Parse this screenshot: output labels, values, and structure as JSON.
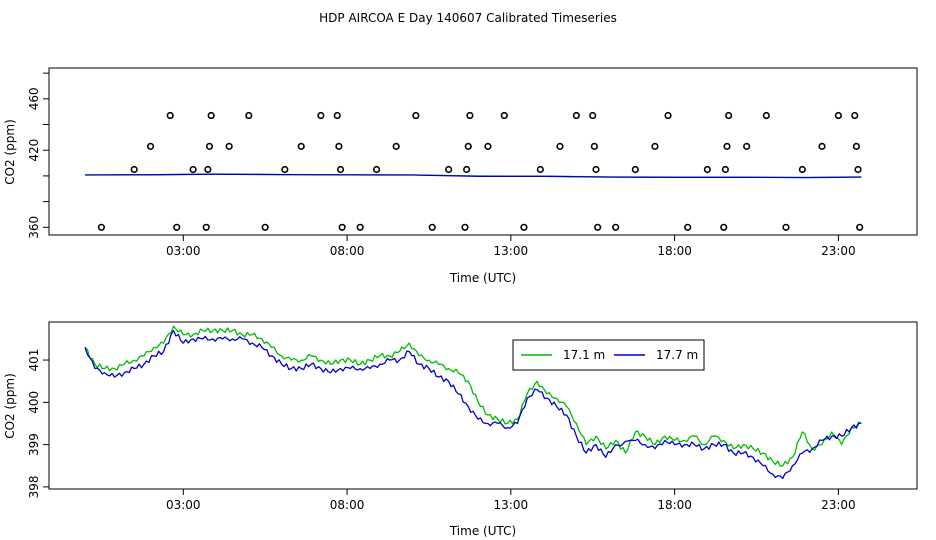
{
  "figure_title": "HDP AIRCOA E  Day 140607  Calibrated Timeseries",
  "chart_data": [
    {
      "type": "scatter",
      "title": "",
      "xlabel": "Time (UTC)",
      "ylabel": "CO2 (ppm)",
      "xlim": [
        -1.1,
        25.4
      ],
      "ylim": [
        354,
        484
      ],
      "xticks": [
        3,
        8,
        13,
        18,
        23
      ],
      "xtick_labels": [
        "03:00",
        "08:00",
        "13:00",
        "18:00",
        "23:00"
      ],
      "yticks": [
        360,
        380,
        400,
        420,
        440,
        460,
        480
      ],
      "ytick_labels": [
        "360",
        "",
        "",
        "420",
        "",
        "460",
        ""
      ],
      "grid": false,
      "series": [
        {
          "kind": "points",
          "color": "#000000",
          "x": [
            0.5,
            1.5,
            2.0,
            2.6,
            2.8,
            3.3,
            3.7,
            3.75,
            3.8,
            3.85,
            4.4,
            5.0,
            5.5,
            6.1,
            6.6,
            7.2,
            7.7,
            7.75,
            7.8,
            7.85,
            8.4,
            8.9,
            9.5,
            10.1,
            10.6,
            11.1,
            11.6,
            11.65,
            11.7,
            11.75,
            12.3,
            12.8,
            13.4,
            13.9,
            14.5,
            15.0,
            15.5,
            15.55,
            15.6,
            15.65,
            16.2,
            16.8,
            17.4,
            17.8,
            18.4,
            19.0,
            19.5,
            19.55,
            19.6,
            19.65,
            20.2,
            20.8,
            21.4,
            21.9,
            22.5,
            23.0,
            23.5,
            23.55,
            23.6,
            23.65
          ],
          "y": [
            360,
            405,
            423,
            447,
            360,
            405,
            360,
            405,
            423,
            447,
            423,
            447,
            360,
            405,
            423,
            447,
            447,
            423,
            405,
            360,
            360,
            405,
            423,
            447,
            360,
            405,
            360,
            405,
            423,
            447,
            423,
            447,
            360,
            405,
            423,
            447,
            447,
            423,
            405,
            360,
            360,
            405,
            423,
            447,
            360,
            405,
            360,
            405,
            423,
            447,
            423,
            447,
            360,
            405,
            423,
            447,
            447,
            423,
            405,
            360
          ]
        },
        {
          "kind": "line",
          "name": "17.1 m",
          "color": "#00bb00",
          "x": [
            0,
            2,
            4,
            6,
            8,
            10,
            12,
            14,
            16,
            18,
            20,
            22,
            23.7
          ],
          "y": [
            400.8,
            401.0,
            401.4,
            401.1,
            400.9,
            400.8,
            399.9,
            399.8,
            399.2,
            399.0,
            399.0,
            398.8,
            399.2
          ]
        },
        {
          "kind": "line",
          "name": "17.7 m",
          "color": "#0000cc",
          "x": [
            0,
            2,
            4,
            6,
            8,
            10,
            12,
            14,
            16,
            18,
            20,
            22,
            23.7
          ],
          "y": [
            400.7,
            400.9,
            401.3,
            401.0,
            400.8,
            400.7,
            399.7,
            399.7,
            399.1,
            398.9,
            398.9,
            398.7,
            399.1
          ]
        }
      ]
    },
    {
      "type": "line",
      "title": "",
      "xlabel": "Time (UTC)",
      "ylabel": "CO2 (ppm)",
      "xlim": [
        -1.1,
        25.4
      ],
      "ylim": [
        397.95,
        401.9
      ],
      "xticks": [
        3,
        8,
        13,
        18,
        23
      ],
      "xtick_labels": [
        "03:00",
        "08:00",
        "13:00",
        "18:00",
        "23:00"
      ],
      "yticks": [
        398,
        399,
        400,
        401
      ],
      "ytick_labels": [
        "398",
        "399",
        "400",
        "401"
      ],
      "grid": false,
      "legend_position": "top-right",
      "series": [
        {
          "name": "17.1 m",
          "color": "#00bb00",
          "x": [
            0,
            0.3,
            0.6,
            0.9,
            1.2,
            1.5,
            1.8,
            2.1,
            2.4,
            2.7,
            3.0,
            3.3,
            3.6,
            3.9,
            4.2,
            4.5,
            4.8,
            5.1,
            5.4,
            5.7,
            6.0,
            6.3,
            6.6,
            6.9,
            7.2,
            7.5,
            7.8,
            8.1,
            8.4,
            8.7,
            9.0,
            9.3,
            9.6,
            9.9,
            10.2,
            10.5,
            10.8,
            11.1,
            11.4,
            11.7,
            12.0,
            12.3,
            12.6,
            12.9,
            13.2,
            13.5,
            13.8,
            14.1,
            14.4,
            14.7,
            15.0,
            15.3,
            15.6,
            15.9,
            16.2,
            16.5,
            16.8,
            17.1,
            17.4,
            17.7,
            18.0,
            18.3,
            18.6,
            18.9,
            19.2,
            19.5,
            19.8,
            20.1,
            20.4,
            20.7,
            21.0,
            21.3,
            21.6,
            21.9,
            22.2,
            22.5,
            22.8,
            23.1,
            23.4,
            23.7
          ],
          "y": [
            401.3,
            400.9,
            400.8,
            400.8,
            400.9,
            401.0,
            401.1,
            401.3,
            401.4,
            401.8,
            401.6,
            401.6,
            401.7,
            401.7,
            401.7,
            401.7,
            401.6,
            401.6,
            401.5,
            401.3,
            401.1,
            401.0,
            401.0,
            401.1,
            401.0,
            400.9,
            401.0,
            401.0,
            400.9,
            401.0,
            401.1,
            401.1,
            401.2,
            401.4,
            401.1,
            401.0,
            400.9,
            400.8,
            400.7,
            400.5,
            400.0,
            399.7,
            399.6,
            399.5,
            399.6,
            400.2,
            400.5,
            400.2,
            400.1,
            399.9,
            399.5,
            399.0,
            399.2,
            398.9,
            399.1,
            398.8,
            399.3,
            399.2,
            399.0,
            399.2,
            399.1,
            399.1,
            399.2,
            399.0,
            399.2,
            399.1,
            398.9,
            399.0,
            398.9,
            398.8,
            398.6,
            398.5,
            398.7,
            399.3,
            398.9,
            399.0,
            399.3,
            399.0,
            399.4,
            399.5
          ]
        },
        {
          "name": "17.7 m",
          "color": "#0000cc",
          "x": [
            0,
            0.3,
            0.6,
            0.9,
            1.2,
            1.5,
            1.8,
            2.1,
            2.4,
            2.7,
            3.0,
            3.3,
            3.6,
            3.9,
            4.2,
            4.5,
            4.8,
            5.1,
            5.4,
            5.7,
            6.0,
            6.3,
            6.6,
            6.9,
            7.2,
            7.5,
            7.8,
            8.1,
            8.4,
            8.7,
            9.0,
            9.3,
            9.6,
            9.9,
            10.2,
            10.5,
            10.8,
            11.1,
            11.4,
            11.7,
            12.0,
            12.3,
            12.6,
            12.9,
            13.2,
            13.5,
            13.8,
            14.1,
            14.4,
            14.7,
            15.0,
            15.3,
            15.6,
            15.9,
            16.2,
            16.8,
            17.1,
            17.4,
            17.7,
            18.0,
            18.3,
            18.6,
            18.9,
            19.2,
            19.5,
            19.8,
            20.1,
            20.4,
            20.7,
            21.0,
            21.3,
            21.6,
            21.9,
            22.2,
            22.5,
            22.8,
            23.1,
            23.4,
            23.7
          ],
          "y": [
            401.3,
            400.8,
            400.7,
            400.6,
            400.7,
            400.8,
            400.9,
            401.1,
            401.2,
            401.7,
            401.4,
            401.5,
            401.5,
            401.5,
            401.5,
            401.5,
            401.5,
            401.4,
            401.3,
            401.1,
            400.9,
            400.8,
            400.8,
            400.9,
            400.8,
            400.7,
            400.8,
            400.8,
            400.8,
            400.8,
            400.9,
            401.0,
            401.0,
            401.2,
            400.9,
            400.8,
            400.6,
            400.5,
            400.2,
            399.9,
            399.6,
            399.5,
            399.5,
            399.4,
            399.5,
            400.1,
            400.3,
            400.1,
            399.9,
            399.7,
            399.2,
            398.8,
            399.0,
            398.7,
            399.0,
            399.1,
            399.0,
            398.9,
            399.1,
            399.0,
            399.0,
            399.0,
            398.9,
            399.0,
            399.0,
            398.8,
            398.8,
            398.7,
            398.5,
            398.3,
            398.2,
            398.5,
            398.8,
            398.9,
            399.1,
            399.2,
            399.2,
            399.4,
            399.5
          ]
        }
      ]
    }
  ]
}
